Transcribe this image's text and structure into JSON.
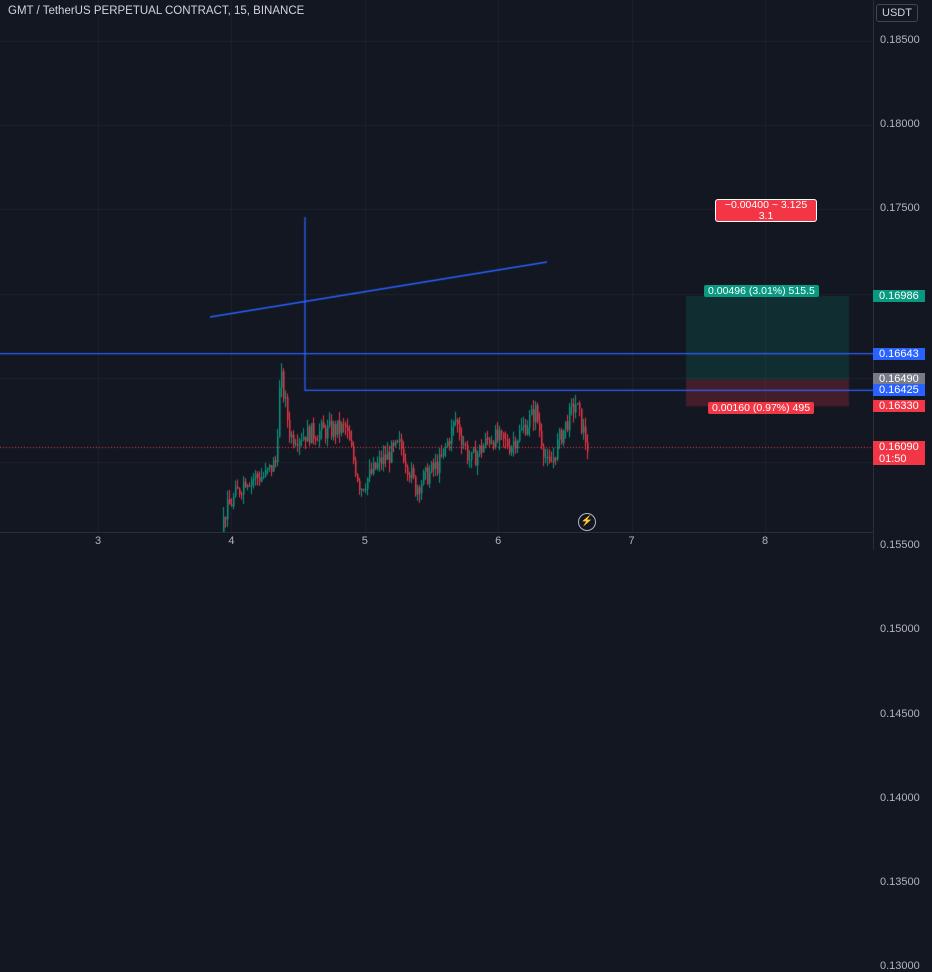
{
  "header": {
    "title": "GMT / TetherUS PERPETUAL CONTRACT, 15, BINANCE"
  },
  "price_axis": {
    "currency": "USDT",
    "ticks": [
      {
        "value": 0.185,
        "label": "0.18500"
      },
      {
        "value": 0.18,
        "label": "0.18000"
      },
      {
        "value": 0.175,
        "label": "0.17500"
      },
      {
        "value": 0.155,
        "label": "0.15500"
      },
      {
        "value": 0.15,
        "label": "0.15000"
      },
      {
        "value": 0.145,
        "label": "0.14500"
      },
      {
        "value": 0.14,
        "label": "0.14000"
      },
      {
        "value": 0.135,
        "label": "0.13500"
      },
      {
        "value": 0.13,
        "label": "0.13000"
      }
    ],
    "labels": [
      {
        "value": 0.16986,
        "text": "0.16986",
        "color": "#089981"
      },
      {
        "value": 0.16643,
        "text": "0.16643",
        "color": "#2962ff"
      },
      {
        "value": 0.1649,
        "text": "0.16490",
        "color": "#787b86"
      },
      {
        "value": 0.16425,
        "text": "0.16425",
        "color": "#2962ff"
      },
      {
        "value": 0.1633,
        "text": "0.16330",
        "color": "#f23645"
      },
      {
        "value": 0.1609,
        "text": "0.16090",
        "color": "#f23645"
      }
    ],
    "countdown": "01:50"
  },
  "time_axis": {
    "ticks": [
      {
        "label": "3",
        "day": 3
      },
      {
        "label": "4",
        "day": 4
      },
      {
        "label": "5",
        "day": 5
      },
      {
        "label": "6",
        "day": 6
      },
      {
        "label": "7",
        "day": 7
      },
      {
        "label": "8",
        "day": 8
      }
    ]
  },
  "position_tool": {
    "target_label": "0.00496 (3.01%) 515.5",
    "stop_label": "0.00160 (0.97%) 495",
    "center_line1": "−0.00400 ~ 3.125",
    "center_line2": "3.1",
    "entry": 0.1649,
    "target": 0.16986,
    "stop": 0.1633
  },
  "drawings": {
    "horizontal_line_price": 0.16643,
    "resistance_price": 0.16425
  },
  "colors": {
    "background": "#131722",
    "up": "#089981",
    "down": "#f23645",
    "line": "#2962ff"
  },
  "icons": {
    "replay": "flash-icon"
  }
}
